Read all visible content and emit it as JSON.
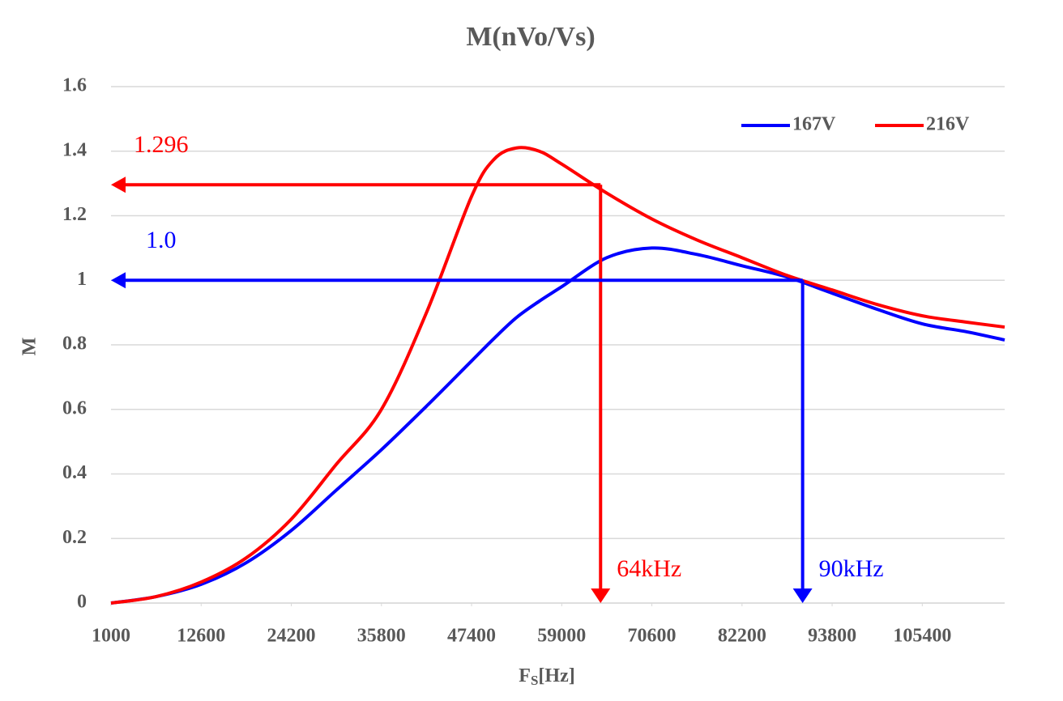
{
  "chart_data": {
    "type": "line",
    "title": "M(nVo/Vs)",
    "y_label": "M",
    "x_label": [
      "F",
      "S",
      "[Hz]"
    ],
    "x": [
      1000,
      6800,
      12600,
      18400,
      24200,
      30000,
      35800,
      41600,
      47400,
      50300,
      53200,
      56100,
      59000,
      64800,
      70600,
      76400,
      82200,
      88000,
      93800,
      99600,
      105400,
      111200,
      116000
    ],
    "series": [
      {
        "name": "167V",
        "color": "#0000ff",
        "values": [
          0,
          0.02,
          0.058,
          0.125,
          0.225,
          0.35,
          0.475,
          0.61,
          0.75,
          0.82,
          0.885,
          0.935,
          0.98,
          1.07,
          1.1,
          1.08,
          1.045,
          1.01,
          0.96,
          0.91,
          0.865,
          0.84,
          0.815
        ]
      },
      {
        "name": "216V",
        "color": "#ff0000",
        "values": [
          0,
          0.02,
          0.065,
          0.14,
          0.26,
          0.43,
          0.6,
          0.9,
          1.26,
          1.375,
          1.41,
          1.4,
          1.36,
          1.27,
          1.19,
          1.125,
          1.07,
          1.015,
          0.97,
          0.925,
          0.89,
          0.87,
          0.855
        ]
      }
    ],
    "xlim": [
      1000,
      116000
    ],
    "xticks": [
      1000,
      12600,
      24200,
      35800,
      47400,
      59000,
      70600,
      82200,
      93800,
      105400
    ],
    "ylim": [
      0,
      1.6
    ],
    "yticks": [
      0,
      0.2,
      0.4,
      0.6,
      0.8,
      1,
      1.2,
      1.4,
      1.6
    ],
    "grid": true,
    "legend": "upper right",
    "annotations": [
      {
        "label": "1.296",
        "y": 1.296,
        "x": 64000,
        "x_label": "64kHz",
        "color": "#ff0000"
      },
      {
        "label": "1.0",
        "y": 1.0,
        "x": 90000,
        "x_label": "90kHz",
        "color": "#0000ff"
      }
    ]
  }
}
